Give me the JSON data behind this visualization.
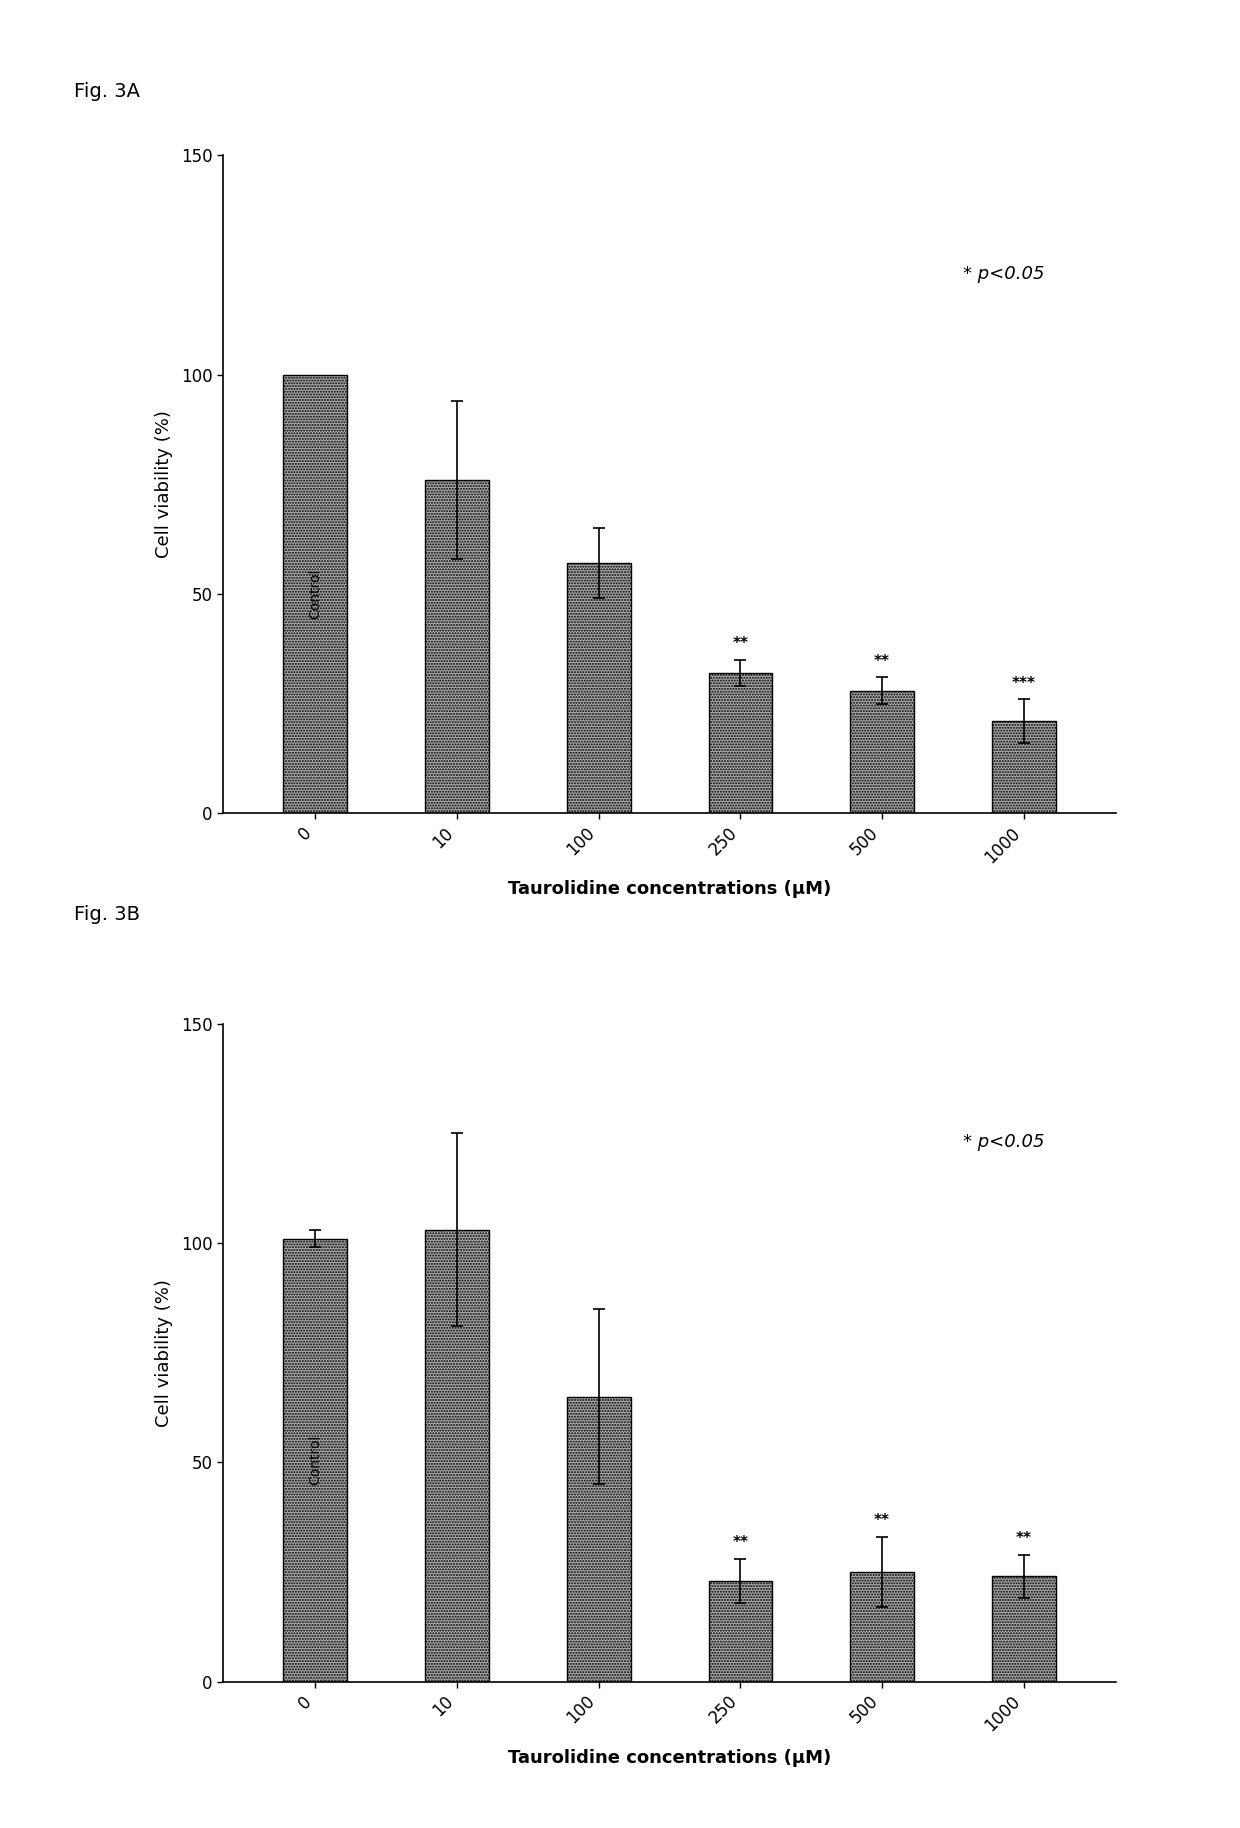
{
  "fig_a": {
    "label": "Fig. 3A",
    "categories": [
      "0",
      "10",
      "100",
      "250",
      "500",
      "1000"
    ],
    "values": [
      100,
      76,
      57,
      32,
      28,
      21
    ],
    "errors": [
      0,
      18,
      8,
      3,
      3,
      5
    ],
    "significance": [
      "",
      "",
      "",
      "**",
      "**",
      "***"
    ],
    "ylabel": "Cell viability (%)",
    "xlabel": "Taurolidine concentrations (μM)",
    "ylim": [
      0,
      150
    ],
    "yticks": [
      0,
      50,
      100,
      150
    ],
    "pvalue_text": "* p<0.05",
    "bar_color": "#aaaaaa",
    "first_bar_label": "Control"
  },
  "fig_b": {
    "label": "Fig. 3B",
    "categories": [
      "0",
      "10",
      "100",
      "250",
      "500",
      "1000"
    ],
    "values": [
      101,
      103,
      65,
      23,
      25,
      24
    ],
    "errors": [
      2,
      22,
      20,
      5,
      8,
      5
    ],
    "significance": [
      "",
      "",
      "",
      "**",
      "**",
      "**"
    ],
    "ylabel": "Cell viability (%)",
    "xlabel": "Taurolidine concentrations (μM)",
    "ylim": [
      0,
      150
    ],
    "yticks": [
      0,
      50,
      100,
      150
    ],
    "pvalue_text": "* p<0.05",
    "bar_color": "#aaaaaa",
    "first_bar_label": "Control"
  }
}
